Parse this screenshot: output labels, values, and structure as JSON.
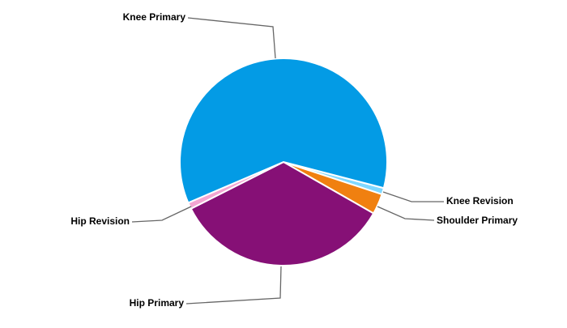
{
  "chart_data": {
    "type": "pie",
    "categories": [
      "Knee Revision",
      "Shoulder Primary",
      "Hip Primary",
      "Hip Revision",
      "Knee Primary"
    ],
    "values": [
      1,
      3.2,
      34.3,
      1,
      60.5
    ],
    "colors": [
      "#80d8ff",
      "#f08010",
      "#861076",
      "#f3a6d2",
      "#039be5"
    ]
  }
}
